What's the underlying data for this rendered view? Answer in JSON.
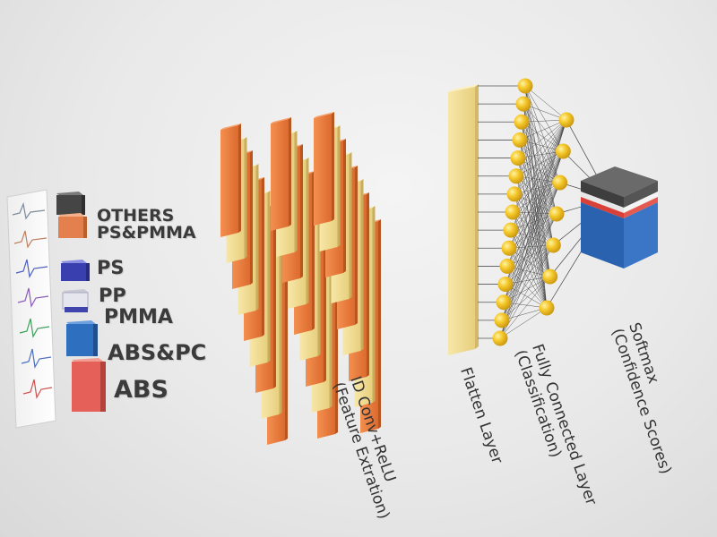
{
  "legend": {
    "classes": [
      {
        "label": "OTHERS",
        "color": "#4b4b4b",
        "icon": "others-cube-icon"
      },
      {
        "label": "PS&PMMA",
        "color": "#e58a5a",
        "icon": "ps-pmma-cube-icon"
      },
      {
        "label": "PS",
        "color": "#3a3fa8",
        "icon": "ps-cube-icon"
      },
      {
        "label": "PP",
        "color": "#5e62b8",
        "icon": "pp-cube-icon"
      },
      {
        "label": "PMMA",
        "color": "#2f6fb8",
        "icon": "pmma-cube-icon"
      },
      {
        "label": "ABS&PC",
        "color": "#3b74c0",
        "icon": "abs-pc-cube-icon"
      },
      {
        "label": "ABS",
        "color": "#e0645a",
        "icon": "abs-cube-icon"
      }
    ]
  },
  "layers": {
    "conv": {
      "line1": "ID Conv+ReLU",
      "line2": "(Feature Extration)"
    },
    "flatten": {
      "line1": "Flatten Layer"
    },
    "fc": {
      "line1": "Fully Connected Layer",
      "line2": "(Classification)"
    },
    "softmax": {
      "line1": "Softmax",
      "line2": "(Confidence Scores)"
    }
  },
  "colors": {
    "orange": "#ef7a3c",
    "cream": "#f2dd92",
    "node": "#f2c21e",
    "softmax_red": "#e2453e",
    "softmax_blue": "#2f6bb8",
    "softmax_dark": "#4a4a4a"
  }
}
